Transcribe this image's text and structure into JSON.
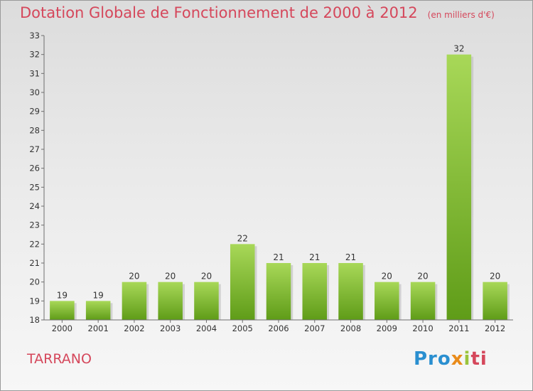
{
  "title": "Dotation Globale de Fonctionnement de 2000 à 2012",
  "unit": "(en milliers d'€)",
  "commune": "TARRANO",
  "logo": {
    "p1": "Pro",
    "p2": "x",
    "p3": "i",
    "p4": "ti"
  },
  "colors": {
    "bar_top": "#a8d858",
    "bar_bottom": "#5f9c18",
    "title": "#d5475b"
  },
  "chart_data": {
    "type": "bar",
    "title": "Dotation Globale de Fonctionnement de 2000 à 2012",
    "categories": [
      "2000",
      "2001",
      "2002",
      "2003",
      "2004",
      "2005",
      "2006",
      "2007",
      "2008",
      "2009",
      "2010",
      "2011",
      "2012"
    ],
    "values": [
      19,
      19,
      20,
      20,
      20,
      22,
      21,
      21,
      21,
      20,
      20,
      32,
      20
    ],
    "ylim": [
      18,
      33
    ],
    "yticks": [
      18,
      19,
      20,
      21,
      22,
      23,
      24,
      25,
      26,
      27,
      28,
      29,
      30,
      31,
      32,
      33
    ],
    "grid": false,
    "legend": "none"
  }
}
